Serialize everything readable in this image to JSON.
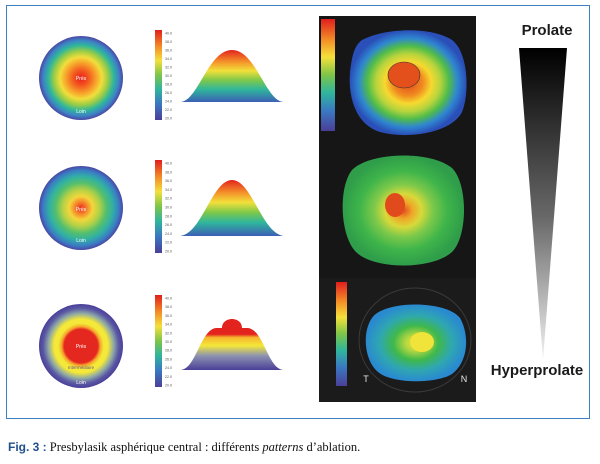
{
  "figure": {
    "rows": [
      {
        "id": "row-1",
        "center_label": "Près",
        "edge_label": "Loin",
        "profile": "bell",
        "scale_ticks": [
          "40.0",
          "38.0",
          "36.0",
          "34.0",
          "32.0",
          "30.0",
          "28.0",
          "26.0",
          "24.0",
          "22.0",
          "20.0"
        ]
      },
      {
        "id": "row-2",
        "center_label": "Près",
        "edge_label": "Loin",
        "profile": "peak",
        "scale_ticks": [
          "40.0",
          "38.0",
          "36.0",
          "34.0",
          "32.0",
          "30.0",
          "28.0",
          "26.0",
          "24.0",
          "22.0",
          "20.0"
        ]
      },
      {
        "id": "row-3",
        "center_label": "Près",
        "ring_label": "Intermédiaire",
        "edge_label": "Loin",
        "profile": "plateau",
        "scale_ticks": [
          "40.0",
          "38.0",
          "36.0",
          "34.0",
          "32.0",
          "30.0",
          "28.0",
          "26.0",
          "24.0",
          "22.0",
          "20.0"
        ]
      }
    ],
    "topo_map_3": {
      "temporal_label": "T",
      "nasal_label": "N"
    },
    "scale_bar": {
      "top_label": "Prolate",
      "bottom_label": "Hyperprolate"
    }
  },
  "caption": {
    "fig_label": "Fig. 3 :",
    "text_before": " Presbylasik asphérique central : différents ",
    "italic_word": "patterns",
    "text_after": " d’ablation."
  },
  "colors": {
    "frame_border": "#3d7fc3",
    "caption_label": "#1f4f8c",
    "topo_background": "#151515"
  }
}
